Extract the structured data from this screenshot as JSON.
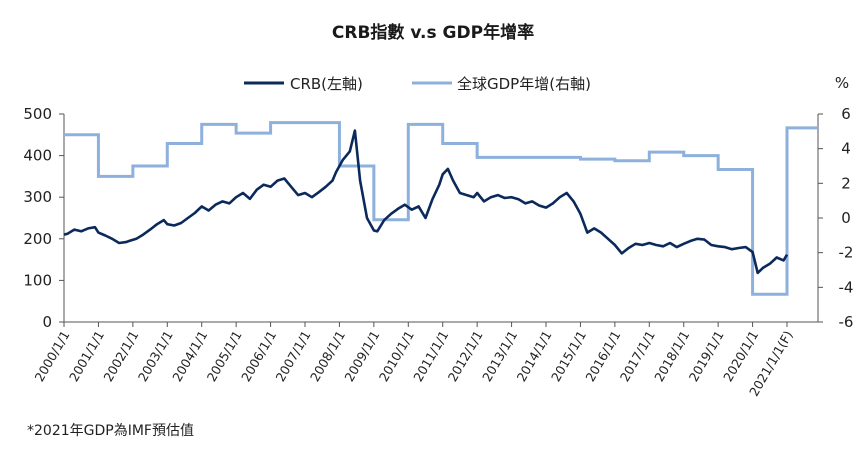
{
  "chart_data": {
    "type": "line",
    "title": "CRB指數 v.s GDP年增率",
    "legend": [
      {
        "name": "CRB(左軸)",
        "color": "#0b2a5b"
      },
      {
        "name": "全球GDP年增(右軸)",
        "color": "#8db0dc"
      }
    ],
    "legend_placement": "top-center",
    "grid": false,
    "y_left": {
      "min": 0,
      "max": 500,
      "ticks": [
        "0",
        "100",
        "200",
        "300",
        "400",
        "500"
      ]
    },
    "y_right": {
      "min": -6,
      "max": 6,
      "ticks": [
        "-6",
        "-4",
        "-2",
        "0",
        "2",
        "4",
        "6"
      ],
      "unit": "%"
    },
    "x_tick_labels": [
      "2000/1/1",
      "2001/1/1",
      "2002/1/1",
      "2003/1/1",
      "2004/1/1",
      "2005/1/1",
      "2006/1/1",
      "2007/1/1",
      "2008/1/1",
      "2009/1/1",
      "2010/1/1",
      "2011/1/1",
      "2012/1/1",
      "2013/1/1",
      "2014/1/1",
      "2015/1/1",
      "2016/1/1",
      "2017/1/1",
      "2018/1/1",
      "2019/1/1",
      "2020/1/1",
      "2021/1/1(F)"
    ],
    "x_range": [
      2000,
      2021.9
    ],
    "series": [
      {
        "name": "CRB(左軸)",
        "axis": "left",
        "color": "#0b2a5b",
        "x": [
          2000.0,
          2000.1,
          2000.3,
          2000.5,
          2000.7,
          2000.9,
          2001.0,
          2001.2,
          2001.4,
          2001.6,
          2001.8,
          2001.9,
          2002.1,
          2002.3,
          2002.5,
          2002.7,
          2002.9,
          2003.0,
          2003.2,
          2003.4,
          2003.6,
          2003.8,
          2004.0,
          2004.2,
          2004.4,
          2004.6,
          2004.8,
          2005.0,
          2005.2,
          2005.4,
          2005.6,
          2005.8,
          2006.0,
          2006.2,
          2006.4,
          2006.6,
          2006.8,
          2007.0,
          2007.2,
          2007.4,
          2007.6,
          2007.8,
          2007.9,
          2008.1,
          2008.3,
          2008.45,
          2008.6,
          2008.8,
          2009.0,
          2009.1,
          2009.3,
          2009.5,
          2009.7,
          2009.9,
          2010.1,
          2010.3,
          2010.5,
          2010.7,
          2010.9,
          2011.0,
          2011.15,
          2011.3,
          2011.5,
          2011.7,
          2011.9,
          2012.0,
          2012.2,
          2012.4,
          2012.6,
          2012.8,
          2013.0,
          2013.2,
          2013.4,
          2013.6,
          2013.8,
          2014.0,
          2014.2,
          2014.4,
          2014.6,
          2014.8,
          2015.0,
          2015.2,
          2015.4,
          2015.6,
          2015.8,
          2016.0,
          2016.2,
          2016.4,
          2016.6,
          2016.8,
          2017.0,
          2017.2,
          2017.4,
          2017.6,
          2017.8,
          2018.0,
          2018.2,
          2018.4,
          2018.6,
          2018.8,
          2019.0,
          2019.2,
          2019.4,
          2019.6,
          2019.8,
          2020.0,
          2020.15,
          2020.3,
          2020.5,
          2020.7,
          2020.9,
          2021.0
        ],
        "y": [
          210,
          212,
          222,
          218,
          225,
          228,
          215,
          208,
          200,
          190,
          192,
          195,
          200,
          210,
          222,
          235,
          245,
          235,
          232,
          238,
          250,
          262,
          278,
          268,
          282,
          290,
          285,
          300,
          310,
          296,
          318,
          330,
          325,
          340,
          345,
          325,
          305,
          310,
          300,
          312,
          325,
          340,
          360,
          390,
          410,
          460,
          340,
          250,
          220,
          218,
          245,
          260,
          272,
          282,
          270,
          278,
          250,
          295,
          330,
          355,
          368,
          340,
          310,
          305,
          300,
          310,
          290,
          300,
          305,
          298,
          300,
          295,
          285,
          290,
          280,
          275,
          285,
          300,
          310,
          290,
          260,
          215,
          225,
          215,
          200,
          185,
          165,
          178,
          188,
          185,
          190,
          185,
          182,
          190,
          180,
          188,
          195,
          200,
          198,
          185,
          182,
          180,
          175,
          178,
          180,
          168,
          118,
          130,
          140,
          155,
          148,
          162
        ]
      },
      {
        "name": "全球GDP年增(右軸)",
        "axis": "right",
        "color": "#8db0dc",
        "step": true,
        "x": [
          2000,
          2001,
          2002,
          2003,
          2004,
          2005,
          2006,
          2007,
          2008,
          2009,
          2010,
          2011,
          2012,
          2013,
          2014,
          2015,
          2016,
          2017,
          2018,
          2019,
          2020,
          2021,
          2021.9
        ],
        "y": [
          4.8,
          2.4,
          3.0,
          4.3,
          5.4,
          4.9,
          5.5,
          5.5,
          3.0,
          -0.1,
          5.4,
          4.3,
          3.5,
          3.5,
          3.5,
          3.4,
          3.3,
          3.8,
          3.6,
          2.8,
          -4.4,
          5.2,
          5.2
        ]
      }
    ]
  },
  "footnote": "*2021年GDP為IMF預估值"
}
